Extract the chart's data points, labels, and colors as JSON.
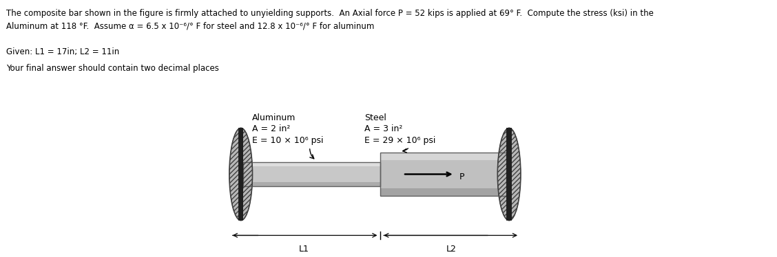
{
  "title_line1": "The composite bar shown in the figure is firmly attached to unyielding supports.  An Axial force P = 52 kips is applied at 69° F.  Compute the stress (ksi) in the",
  "title_line2": "Aluminum at 118 °F.  Assume α = 6.5 x 10⁻⁶/° F for steel and 12.8 x 10⁻⁶/° F for aluminum",
  "given_line": "Given: L1 = 17in; L2 = 11in",
  "answer_line": "Your final answer should contain two decimal places",
  "alum_label": "Aluminum",
  "alum_A": "A = 2 in²",
  "alum_E": "E = 10 × 10⁶ psi",
  "steel_label": "Steel",
  "steel_A": "A = 3 in²",
  "steel_E": "E = 29 × 10⁶ psi",
  "P_label": "P",
  "L1_label": "L1",
  "L2_label": "L2",
  "bg_color": "#ffffff",
  "text_color": "#000000"
}
